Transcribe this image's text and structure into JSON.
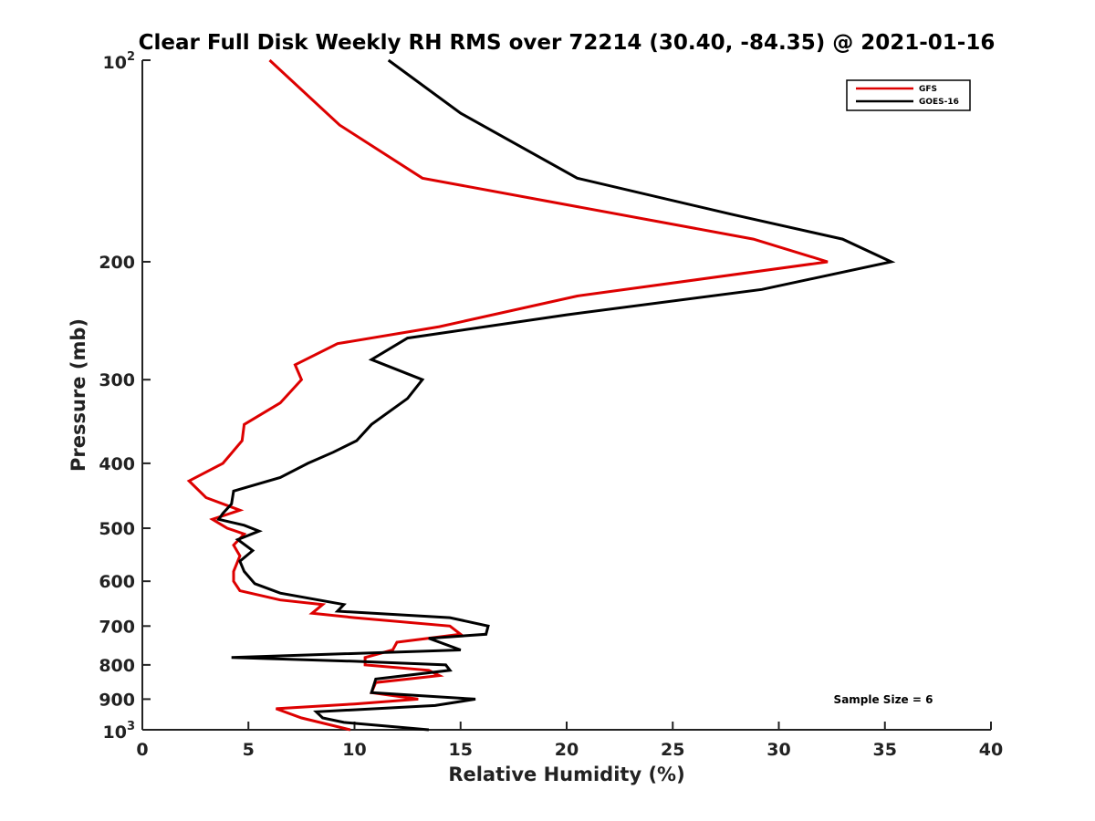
{
  "chart_data": {
    "type": "line",
    "title": "Clear Full Disk Weekly RH RMS over 72214 (30.40, -84.35) @ 2021-01-16",
    "xlabel": "Relative Humidity (%)",
    "ylabel": "Pressure (mb)",
    "xlim": [
      0,
      40
    ],
    "ylim": [
      100,
      1000
    ],
    "yscale": "log",
    "y_direction": "reversed",
    "grid": false,
    "x_ticks": [
      {
        "value": 0,
        "label": "0"
      },
      {
        "value": 5,
        "label": "5"
      },
      {
        "value": 10,
        "label": "10"
      },
      {
        "value": 15,
        "label": "15"
      },
      {
        "value": 20,
        "label": "20"
      },
      {
        "value": 25,
        "label": "25"
      },
      {
        "value": 30,
        "label": "30"
      },
      {
        "value": 35,
        "label": "35"
      },
      {
        "value": 40,
        "label": "40"
      }
    ],
    "y_ticks": [
      {
        "value": 100,
        "base": "10",
        "exp": "2"
      },
      {
        "value": 200,
        "label": "200"
      },
      {
        "value": 300,
        "label": "300"
      },
      {
        "value": 400,
        "label": "400"
      },
      {
        "value": 500,
        "label": "500"
      },
      {
        "value": 600,
        "label": "600"
      },
      {
        "value": 700,
        "label": "700"
      },
      {
        "value": 800,
        "label": "800"
      },
      {
        "value": 900,
        "label": "900"
      },
      {
        "value": 1000,
        "base": "10",
        "exp": "3"
      }
    ],
    "legend": {
      "position": "top-right"
    },
    "annotations": [
      {
        "text": "Sample Size = 6",
        "position": "bottom-right"
      }
    ],
    "series": [
      {
        "name": "GFS",
        "color": "#dd0000",
        "points": [
          [
            6.0,
            100
          ],
          [
            9.3,
            125
          ],
          [
            13.2,
            150
          ],
          [
            28.8,
            185
          ],
          [
            32.3,
            200
          ],
          [
            20.5,
            225
          ],
          [
            14.0,
            250
          ],
          [
            9.2,
            265
          ],
          [
            7.2,
            285
          ],
          [
            7.5,
            300
          ],
          [
            6.5,
            325
          ],
          [
            4.8,
            350
          ],
          [
            4.7,
            370
          ],
          [
            3.8,
            400
          ],
          [
            2.2,
            425
          ],
          [
            3.0,
            450
          ],
          [
            4.6,
            470
          ],
          [
            3.3,
            485
          ],
          [
            4.0,
            500
          ],
          [
            4.8,
            510
          ],
          [
            4.3,
            530
          ],
          [
            4.6,
            550
          ],
          [
            4.3,
            580
          ],
          [
            4.3,
            600
          ],
          [
            4.6,
            620
          ],
          [
            6.5,
            640
          ],
          [
            8.5,
            650
          ],
          [
            8.0,
            670
          ],
          [
            10.0,
            680
          ],
          [
            14.5,
            700
          ],
          [
            15.0,
            720
          ],
          [
            12.0,
            740
          ],
          [
            11.8,
            760
          ],
          [
            10.5,
            780
          ],
          [
            10.5,
            800
          ],
          [
            13.5,
            815
          ],
          [
            14.0,
            830
          ],
          [
            11.0,
            850
          ],
          [
            10.8,
            880
          ],
          [
            13.0,
            900
          ],
          [
            10.0,
            915
          ],
          [
            6.3,
            930
          ],
          [
            7.5,
            960
          ],
          [
            9.8,
            1000
          ]
        ]
      },
      {
        "name": "GOES-16",
        "color": "#000000",
        "points": [
          [
            11.6,
            100
          ],
          [
            15.0,
            120
          ],
          [
            20.5,
            150
          ],
          [
            27.8,
            170
          ],
          [
            33.0,
            185
          ],
          [
            35.3,
            200
          ],
          [
            29.2,
            220
          ],
          [
            20.0,
            240
          ],
          [
            12.5,
            260
          ],
          [
            10.8,
            280
          ],
          [
            13.2,
            300
          ],
          [
            12.5,
            320
          ],
          [
            10.8,
            350
          ],
          [
            10.1,
            370
          ],
          [
            9.0,
            385
          ],
          [
            7.8,
            400
          ],
          [
            6.5,
            420
          ],
          [
            4.3,
            440
          ],
          [
            4.2,
            460
          ],
          [
            3.8,
            475
          ],
          [
            3.6,
            485
          ],
          [
            4.8,
            495
          ],
          [
            5.5,
            505
          ],
          [
            4.5,
            520
          ],
          [
            5.2,
            540
          ],
          [
            4.6,
            560
          ],
          [
            4.8,
            580
          ],
          [
            5.3,
            605
          ],
          [
            6.5,
            625
          ],
          [
            9.5,
            650
          ],
          [
            9.2,
            665
          ],
          [
            14.5,
            680
          ],
          [
            16.3,
            700
          ],
          [
            16.2,
            720
          ],
          [
            13.5,
            730
          ],
          [
            15.0,
            760
          ],
          [
            4.2,
            780
          ],
          [
            10.0,
            790
          ],
          [
            14.3,
            800
          ],
          [
            14.5,
            815
          ],
          [
            11.0,
            840
          ],
          [
            10.8,
            880
          ],
          [
            15.7,
            900
          ],
          [
            13.8,
            920
          ],
          [
            8.2,
            940
          ],
          [
            8.5,
            960
          ],
          [
            9.5,
            975
          ],
          [
            13.5,
            1000
          ]
        ]
      }
    ]
  }
}
